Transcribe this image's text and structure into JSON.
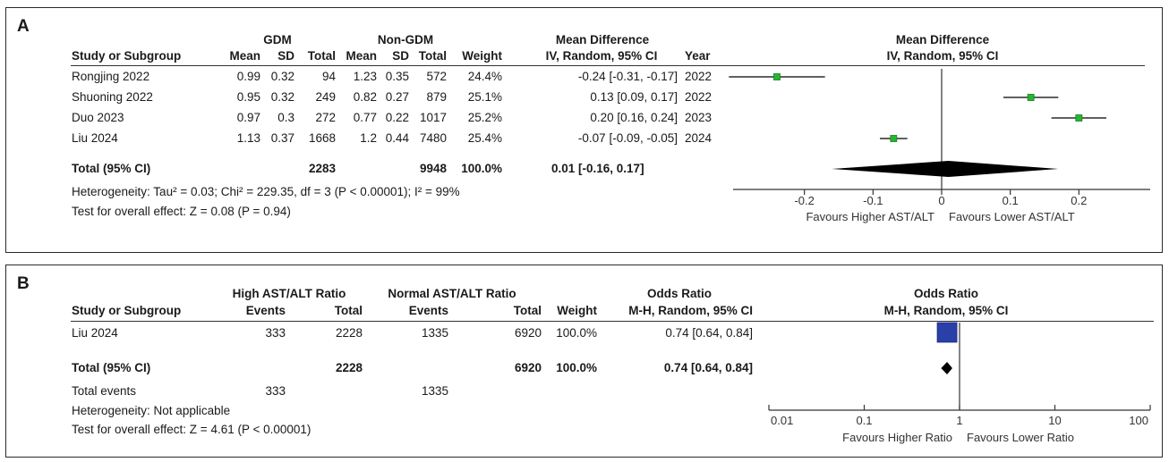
{
  "chart_data": [
    {
      "type": "forest",
      "panel_label": "A",
      "group_headers": [
        "GDM",
        "Non-GDM"
      ],
      "columns": [
        "Study or Subgroup",
        "Mean",
        "SD",
        "Total",
        "Mean",
        "SD",
        "Total",
        "Weight",
        "IV, Random, 95% CI",
        "Year"
      ],
      "effect_header": "Mean Difference",
      "plot_header": "Mean Difference",
      "plot_subheader": "IV, Random, 95% CI",
      "studies": [
        {
          "name": "Rongjing 2022",
          "m1": "0.99",
          "sd1": "0.32",
          "n1": "94",
          "m2": "1.23",
          "sd2": "0.35",
          "n2": "572",
          "weight": "24.4%",
          "ci_text": "-0.24 [-0.31, -0.17]",
          "year": "2022",
          "est": -0.24,
          "lo": -0.31,
          "hi": -0.17
        },
        {
          "name": "Shuoning 2022",
          "m1": "0.95",
          "sd1": "0.32",
          "n1": "249",
          "m2": "0.82",
          "sd2": "0.27",
          "n2": "879",
          "weight": "25.1%",
          "ci_text": "0.13 [0.09, 0.17]",
          "year": "2022",
          "est": 0.13,
          "lo": 0.09,
          "hi": 0.17
        },
        {
          "name": "Duo 2023",
          "m1": "0.97",
          "sd1": "0.3",
          "n1": "272",
          "m2": "0.77",
          "sd2": "0.22",
          "n2": "1017",
          "weight": "25.2%",
          "ci_text": "0.20 [0.16, 0.24]",
          "year": "2023",
          "est": 0.2,
          "lo": 0.16,
          "hi": 0.24
        },
        {
          "name": "Liu 2024",
          "m1": "1.13",
          "sd1": "0.37",
          "n1": "1668",
          "m2": "1.2",
          "sd2": "0.44",
          "n2": "7480",
          "weight": "25.4%",
          "ci_text": "-0.07 [-0.09, -0.05]",
          "year": "2024",
          "est": -0.07,
          "lo": -0.09,
          "hi": -0.05
        }
      ],
      "total": {
        "label": "Total (95% CI)",
        "n1": "2283",
        "n2": "9948",
        "weight": "100.0%",
        "ci_text": "0.01 [-0.16, 0.17]",
        "est": 0.01,
        "lo": -0.16,
        "hi": 0.17
      },
      "heterogeneity": "Heterogeneity: Tau² = 0.03; Chi² = 229.35, df = 3 (P < 0.00001); I² = 99%",
      "overall_effect": "Test for overall effect: Z = 0.08 (P = 0.94)",
      "axis": {
        "scale": "linear",
        "xlim": [
          -0.3,
          0.3
        ],
        "ticks": [
          "-0.2",
          "-0.1",
          "0",
          "0.1",
          "0.2"
        ],
        "tick_values": [
          -0.2,
          -0.1,
          0,
          0.1,
          0.2
        ],
        "null_value": 0
      },
      "favours_left": "Favours Higher AST/ALT",
      "favours_right": "Favours Lower AST/ALT",
      "study_marker_color": "#22b830",
      "diamond_color": "#000000"
    },
    {
      "type": "forest",
      "panel_label": "B",
      "group_headers": [
        "High AST/ALT Ratio",
        "Normal AST/ALT Ratio"
      ],
      "columns": [
        "Study or Subgroup",
        "Events",
        "Total",
        "Events",
        "Total",
        "Weight",
        "M-H, Random, 95% CI"
      ],
      "effect_header": "Odds Ratio",
      "plot_header": "Odds Ratio",
      "plot_subheader": "M-H, Random, 95% CI",
      "studies": [
        {
          "name": "Liu 2024",
          "e1": "333",
          "n1": "2228",
          "e2": "1335",
          "n2": "6920",
          "weight": "100.0%",
          "ci_text": "0.74 [0.64, 0.84]",
          "est": 0.74,
          "lo": 0.64,
          "hi": 0.84
        }
      ],
      "total": {
        "label": "Total (95% CI)",
        "n1": "2228",
        "n2": "6920",
        "weight": "100.0%",
        "ci_text": "0.74 [0.64, 0.84]",
        "est": 0.74,
        "lo": 0.64,
        "hi": 0.84
      },
      "total_events": {
        "label": "Total events",
        "e1": "333",
        "e2": "1335"
      },
      "heterogeneity": "Heterogeneity: Not applicable",
      "overall_effect": "Test for overall effect: Z = 4.61 (P < 0.00001)",
      "axis": {
        "scale": "log",
        "xlim": [
          0.01,
          100
        ],
        "ticks": [
          "0.01",
          "0.1",
          "1",
          "10",
          "100"
        ],
        "tick_values": [
          0.01,
          0.1,
          1,
          10,
          100
        ],
        "null_value": 1
      },
      "favours_left": "Favours Higher Ratio",
      "favours_right": "Favours Lower Ratio",
      "study_marker_color": "#2a3fa8",
      "diamond_color": "#000000"
    }
  ]
}
